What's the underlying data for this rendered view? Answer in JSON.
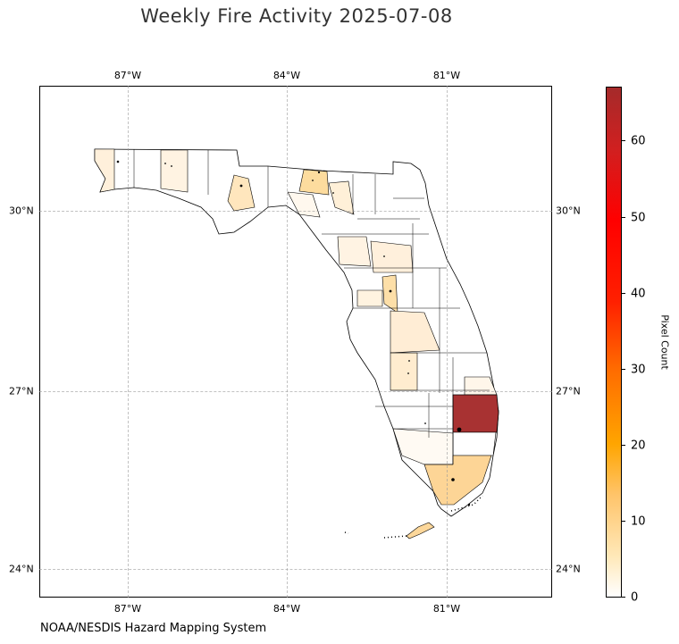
{
  "title": "Weekly Fire Activity 2025-07-08",
  "credit": "NOAA/NESDIS Hazard Mapping System",
  "colorbar": {
    "label": "Pixel Count",
    "min": 0,
    "max": 67,
    "ticks": [
      "0",
      "10",
      "20",
      "30",
      "40",
      "50",
      "60"
    ],
    "colors": [
      "#ffffff",
      "#ffe8b8",
      "#ffa500",
      "#ff0000",
      "#a52a2a"
    ]
  },
  "axes": {
    "lon_ticks": [
      "87°W",
      "84°W",
      "81°W"
    ],
    "lat_ticks": [
      "30°N",
      "27°N",
      "24°N"
    ],
    "lon_range": [
      -88.6,
      -79.0
    ],
    "lat_range": [
      23.5,
      31.9
    ]
  },
  "region": "Florida",
  "counties": [
    {
      "name": "palm-beach",
      "value": 67
    },
    {
      "name": "miami-dade",
      "value": 10
    },
    {
      "name": "monroe",
      "value": 9
    },
    {
      "name": "hamilton",
      "value": 7
    },
    {
      "name": "liberty",
      "value": 6
    },
    {
      "name": "citrus",
      "value": 5
    },
    {
      "name": "marion",
      "value": 3
    },
    {
      "name": "polk",
      "value": 3
    },
    {
      "name": "highlands",
      "value": 2
    },
    {
      "name": "escambia",
      "value": 2
    },
    {
      "name": "okaloosa",
      "value": 2
    },
    {
      "name": "collier",
      "value": 1
    }
  ]
}
